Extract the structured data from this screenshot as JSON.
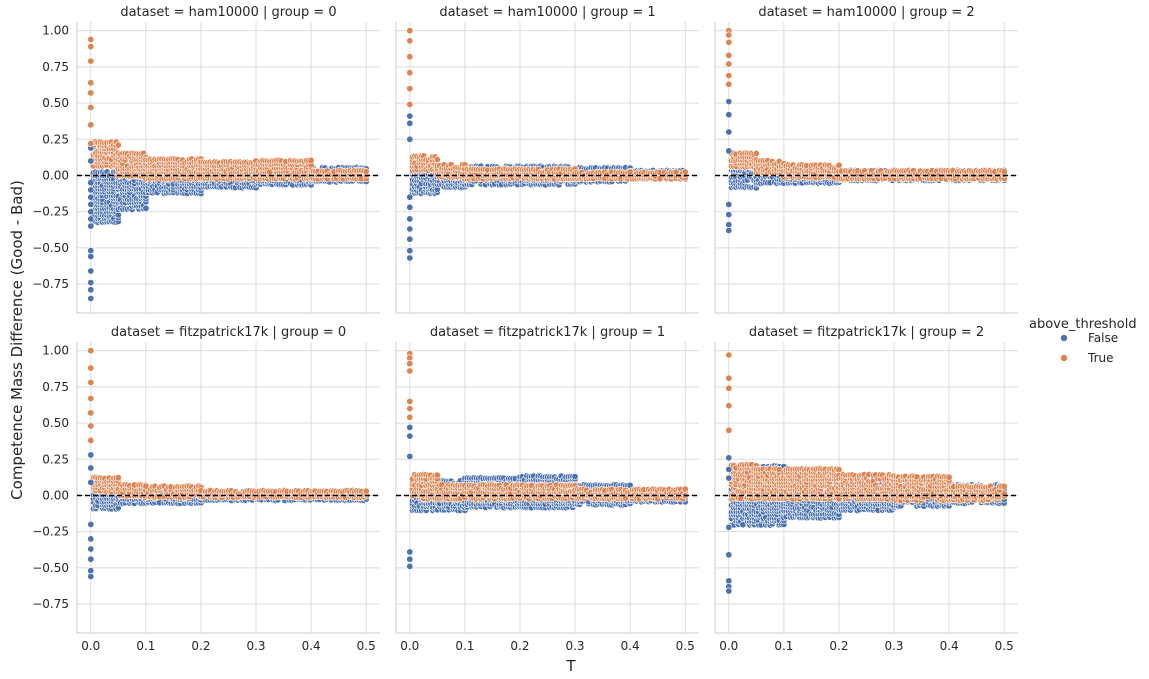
{
  "chart_data": {
    "type": "scatter",
    "xlabel": "T",
    "ylabel": "Competence Mass Difference (Good - Bad)",
    "xlim": [
      -0.025,
      0.525
    ],
    "ylim": [
      -0.95,
      1.06
    ],
    "xticks": [
      "0.0",
      "0.1",
      "0.2",
      "0.3",
      "0.4",
      "0.5"
    ],
    "yticks": [
      "1.00",
      "0.75",
      "0.50",
      "0.25",
      "0.00",
      "−0.25",
      "−0.50",
      "−0.75"
    ],
    "grid": true,
    "reference_line": {
      "y": 0.0,
      "style": "dashed",
      "color": "#000000"
    },
    "legend": {
      "title": "above_threshold",
      "placement": "right",
      "entries": [
        {
          "label": "False",
          "color": "#4c72b0"
        },
        {
          "label": "True",
          "color": "#dd8452"
        }
      ]
    },
    "panels": [
      {
        "title": "dataset = ham10000 | group = 0",
        "t0_false": [
          0.19,
          0.1,
          -0.05,
          -0.1,
          -0.15,
          -0.2,
          -0.25,
          -0.3,
          -0.35,
          -0.52,
          -0.56,
          -0.66,
          -0.74,
          -0.79,
          -0.85
        ],
        "t0_true": [
          0.94,
          0.89,
          0.79,
          0.64,
          0.57,
          0.47,
          0.35,
          0.22
        ],
        "false_bands": [
          {
            "t": [
              0.0,
              0.05
            ],
            "low": -0.32,
            "high": 0.02
          },
          {
            "t": [
              0.05,
              0.1
            ],
            "low": -0.23,
            "high": 0.06
          },
          {
            "t": [
              0.1,
              0.2
            ],
            "low": -0.12,
            "high": 0.05
          },
          {
            "t": [
              0.2,
              0.3
            ],
            "low": -0.08,
            "high": 0.06
          },
          {
            "t": [
              0.3,
              0.4
            ],
            "low": -0.06,
            "high": 0.07
          },
          {
            "t": [
              0.4,
              0.5
            ],
            "low": -0.04,
            "high": 0.05
          }
        ],
        "true_bands": [
          {
            "t": [
              0.0,
              0.05
            ],
            "low": 0.07,
            "high": 0.23
          },
          {
            "t": [
              0.05,
              0.1
            ],
            "low": 0.0,
            "high": 0.15
          },
          {
            "t": [
              0.1,
              0.2
            ],
            "low": -0.02,
            "high": 0.11
          },
          {
            "t": [
              0.2,
              0.3
            ],
            "low": -0.02,
            "high": 0.09
          },
          {
            "t": [
              0.3,
              0.4
            ],
            "low": -0.02,
            "high": 0.1
          },
          {
            "t": [
              0.4,
              0.5
            ],
            "low": -0.02,
            "high": 0.03
          }
        ]
      },
      {
        "title": "dataset = ham10000 | group = 1",
        "t0_false": [
          0.41,
          0.36,
          0.25,
          -0.15,
          -0.22,
          -0.3,
          -0.37,
          -0.44,
          -0.52,
          -0.57
        ],
        "t0_true": [
          1.0,
          0.93,
          0.82,
          0.71,
          0.6,
          0.49
        ],
        "false_bands": [
          {
            "t": [
              0.0,
              0.05
            ],
            "low": -0.12,
            "high": 0.07
          },
          {
            "t": [
              0.05,
              0.1
            ],
            "low": -0.08,
            "high": 0.05
          },
          {
            "t": [
              0.1,
              0.3
            ],
            "low": -0.06,
            "high": 0.06
          },
          {
            "t": [
              0.3,
              0.4
            ],
            "low": -0.04,
            "high": 0.05
          },
          {
            "t": [
              0.4,
              0.5
            ],
            "low": -0.02,
            "high": 0.03
          }
        ],
        "true_bands": [
          {
            "t": [
              0.0,
              0.05
            ],
            "low": 0.04,
            "high": 0.13
          },
          {
            "t": [
              0.05,
              0.1
            ],
            "low": -0.01,
            "high": 0.07
          },
          {
            "t": [
              0.1,
              0.3
            ],
            "low": -0.02,
            "high": 0.04
          },
          {
            "t": [
              0.3,
              0.5
            ],
            "low": -0.02,
            "high": 0.02
          }
        ]
      },
      {
        "title": "dataset = ham10000 | group = 2",
        "t0_false": [
          0.51,
          0.42,
          0.3,
          0.17,
          -0.2,
          -0.27,
          -0.34,
          -0.38
        ],
        "t0_true": [
          1.0,
          0.97,
          0.92,
          0.83,
          0.77,
          0.69,
          0.63
        ],
        "false_bands": [
          {
            "t": [
              0.0,
              0.05
            ],
            "low": -0.08,
            "high": 0.06
          },
          {
            "t": [
              0.05,
              0.2
            ],
            "low": -0.05,
            "high": 0.04
          },
          {
            "t": [
              0.2,
              0.5
            ],
            "low": -0.03,
            "high": 0.03
          }
        ],
        "true_bands": [
          {
            "t": [
              0.0,
              0.05
            ],
            "low": 0.06,
            "high": 0.15
          },
          {
            "t": [
              0.05,
              0.1
            ],
            "low": 0.02,
            "high": 0.1
          },
          {
            "t": [
              0.1,
              0.2
            ],
            "low": -0.01,
            "high": 0.07
          },
          {
            "t": [
              0.2,
              0.5
            ],
            "low": -0.02,
            "high": 0.03
          }
        ]
      },
      {
        "title": "dataset = fitzpatrick17k | group = 0",
        "t0_false": [
          0.28,
          0.19,
          0.09,
          -0.2,
          -0.3,
          -0.37,
          -0.44,
          -0.52,
          -0.56
        ],
        "t0_true": [
          1.0,
          0.88,
          0.78,
          0.67,
          0.57,
          0.48,
          0.38
        ],
        "false_bands": [
          {
            "t": [
              0.0,
              0.05
            ],
            "low": -0.09,
            "high": 0.05
          },
          {
            "t": [
              0.05,
              0.2
            ],
            "low": -0.05,
            "high": 0.04
          },
          {
            "t": [
              0.2,
              0.5
            ],
            "low": -0.03,
            "high": 0.02
          }
        ],
        "true_bands": [
          {
            "t": [
              0.0,
              0.05
            ],
            "low": 0.03,
            "high": 0.12
          },
          {
            "t": [
              0.05,
              0.1
            ],
            "low": 0.0,
            "high": 0.07
          },
          {
            "t": [
              0.1,
              0.2
            ],
            "low": -0.01,
            "high": 0.06
          },
          {
            "t": [
              0.2,
              0.5
            ],
            "low": -0.01,
            "high": 0.03
          }
        ]
      },
      {
        "title": "dataset = fitzpatrick17k | group = 1",
        "t0_false": [
          0.47,
          0.41,
          0.27,
          -0.39,
          -0.44,
          -0.49
        ],
        "t0_true": [
          0.98,
          0.95,
          0.91,
          0.86,
          0.65,
          0.6,
          0.54
        ],
        "false_bands": [
          {
            "t": [
              0.0,
              0.1
            ],
            "low": -0.1,
            "high": 0.1
          },
          {
            "t": [
              0.1,
              0.2
            ],
            "low": -0.08,
            "high": 0.12
          },
          {
            "t": [
              0.2,
              0.3
            ],
            "low": -0.08,
            "high": 0.13
          },
          {
            "t": [
              0.3,
              0.4
            ],
            "low": -0.06,
            "high": 0.07
          },
          {
            "t": [
              0.4,
              0.5
            ],
            "low": -0.04,
            "high": 0.03
          }
        ],
        "true_bands": [
          {
            "t": [
              0.0,
              0.05
            ],
            "low": -0.02,
            "high": 0.14
          },
          {
            "t": [
              0.05,
              0.3
            ],
            "low": -0.02,
            "high": 0.07
          },
          {
            "t": [
              0.3,
              0.5
            ],
            "low": -0.02,
            "high": 0.04
          }
        ]
      },
      {
        "title": "dataset = fitzpatrick17k | group = 2",
        "t0_false": [
          0.26,
          0.18,
          0.12,
          -0.22,
          -0.41,
          -0.59,
          -0.63,
          -0.66
        ],
        "t0_true": [
          0.97,
          0.81,
          0.74,
          0.62,
          0.45
        ],
        "false_bands": [
          {
            "t": [
              0.0,
              0.1
            ],
            "low": -0.2,
            "high": 0.2
          },
          {
            "t": [
              0.1,
              0.2
            ],
            "low": -0.15,
            "high": 0.14
          },
          {
            "t": [
              0.2,
              0.3
            ],
            "low": -0.1,
            "high": 0.11
          },
          {
            "t": [
              0.3,
              0.4
            ],
            "low": -0.07,
            "high": 0.09
          },
          {
            "t": [
              0.4,
              0.5
            ],
            "low": -0.05,
            "high": 0.07
          }
        ],
        "true_bands": [
          {
            "t": [
              0.0,
              0.05
            ],
            "low": -0.02,
            "high": 0.21
          },
          {
            "t": [
              0.05,
              0.2
            ],
            "low": -0.02,
            "high": 0.18
          },
          {
            "t": [
              0.2,
              0.3
            ],
            "low": -0.02,
            "high": 0.14
          },
          {
            "t": [
              0.3,
              0.4
            ],
            "low": -0.03,
            "high": 0.13
          },
          {
            "t": [
              0.4,
              0.5
            ],
            "low": -0.03,
            "high": 0.06
          }
        ]
      }
    ]
  }
}
